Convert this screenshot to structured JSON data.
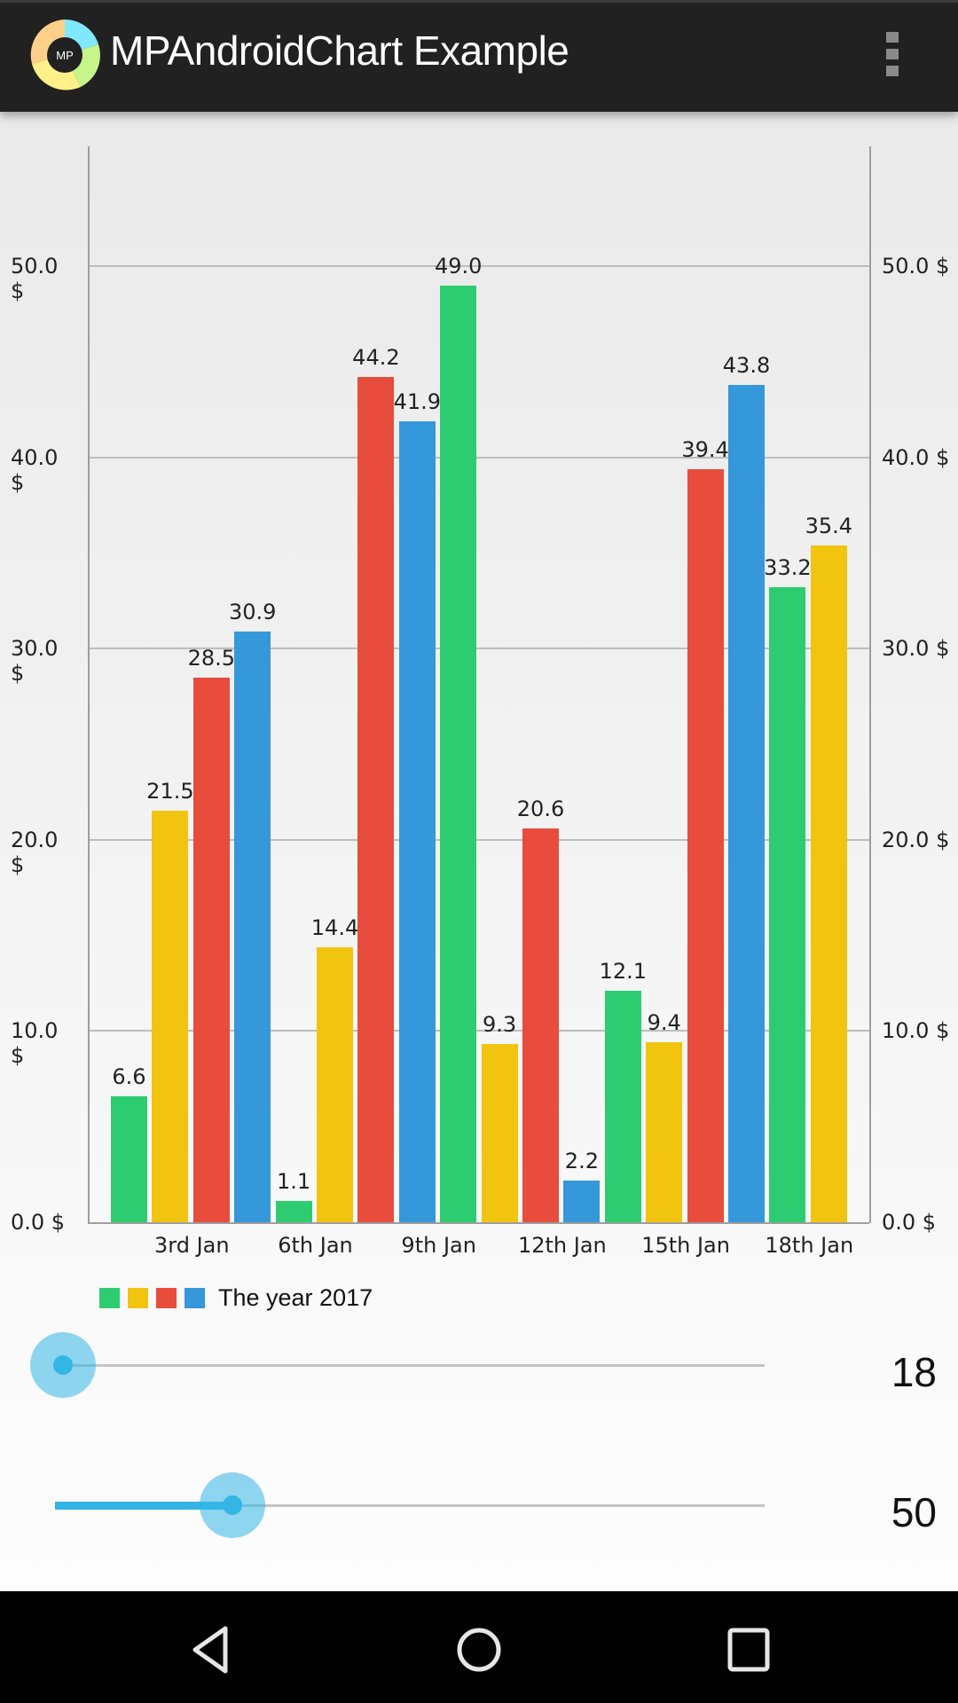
{
  "appbar": {
    "title": "MPAndroidChart Example",
    "logo_text": "MP",
    "menu_icon": "overflow-menu-icon"
  },
  "chart_data": {
    "type": "bar",
    "title": "",
    "xlabel": "",
    "ylabel": "",
    "ylim": [
      0,
      56
    ],
    "grid": true,
    "y_ticks": [
      "0.0 $",
      "10.0 $",
      "20.0 $",
      "30.0 $",
      "40.0 $",
      "50.0 $"
    ],
    "y_tick_values": [
      0,
      10,
      20,
      30,
      40,
      50
    ],
    "x_tick_labels": [
      "3rd Jan",
      "6th Jan",
      "9th Jan",
      "12th Jan",
      "15th Jan",
      "18th Jan"
    ],
    "x_tick_positions": [
      3,
      6,
      9,
      12,
      15,
      18
    ],
    "x": [
      1,
      2,
      3,
      4,
      5,
      6,
      7,
      8,
      9,
      10,
      11,
      12,
      13,
      14,
      15,
      16,
      17,
      18
    ],
    "values": [
      6.6,
      21.5,
      28.5,
      30.9,
      1.1,
      14.4,
      44.2,
      41.9,
      49.0,
      9.3,
      20.6,
      2.2,
      12.1,
      9.4,
      39.4,
      43.8,
      33.2,
      35.4
    ],
    "value_labels": [
      "6.6",
      "21.5",
      "28.5",
      "30.9",
      "1.1",
      "14.4",
      "44.2",
      "41.9",
      "49.0",
      "9.3",
      "20.6",
      "2.2",
      "12.1",
      "9.4",
      "39.4",
      "43.8",
      "33.2",
      "35.4"
    ],
    "bar_colors": [
      "#2ecc71",
      "#f1c40f",
      "#e74c3c",
      "#3498db"
    ],
    "legend": {
      "label": "The year 2017",
      "position": "bottom-left",
      "colors": [
        "#2ecc71",
        "#f1c40f",
        "#e74c3c",
        "#3498db"
      ]
    },
    "dual_y_axis": true
  },
  "sliders": [
    {
      "name": "x-count",
      "value": "18",
      "fraction": 0.0
    },
    {
      "name": "y-range",
      "value": "50",
      "fraction": 0.25
    }
  ],
  "accent": "#33b5e5",
  "navbar": {
    "icons": [
      "back-icon",
      "home-icon",
      "recents-icon"
    ]
  }
}
